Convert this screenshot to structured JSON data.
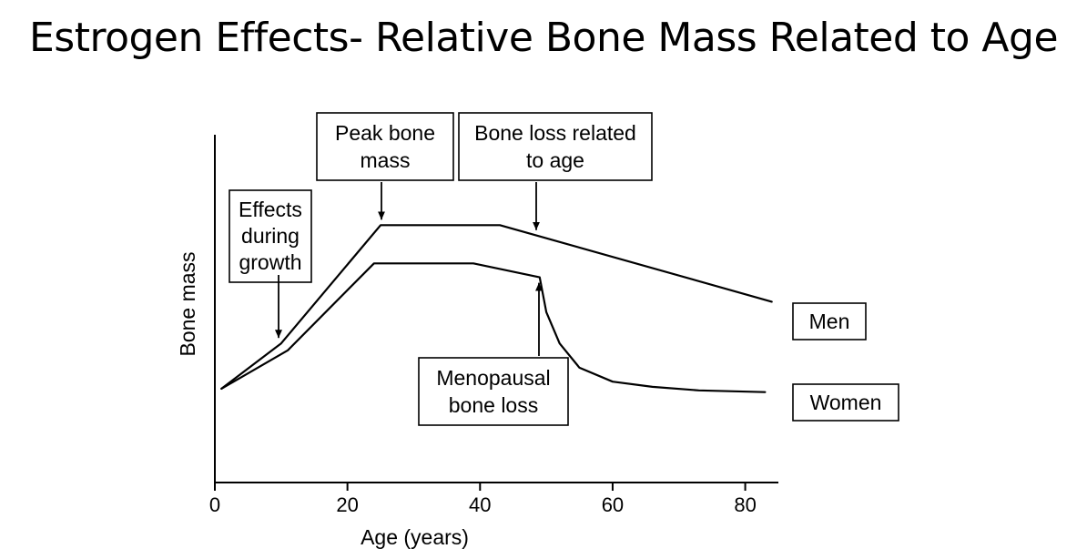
{
  "page": {
    "title": "Estrogen Effects- Relative Bone Mass Related to Age"
  },
  "chart_data": {
    "type": "line",
    "title": "Estrogen Effects- Relative Bone Mass Related to Age",
    "xlabel": "Age (years)",
    "ylabel": "Bone mass",
    "xlim": [
      0,
      85
    ],
    "ylim": [
      0,
      100
    ],
    "x_ticks": [
      0,
      20,
      40,
      60,
      80
    ],
    "x_tick_labels": [
      "0",
      "20",
      "40",
      "60",
      "80"
    ],
    "y_ticks_shown": false,
    "grid": false,
    "colors": {
      "line": "#000000",
      "background": "#ffffff"
    },
    "series": [
      {
        "name": "Men",
        "x": [
          1,
          10,
          25,
          43,
          84
        ],
        "y": [
          27,
          40,
          74,
          74,
          52
        ]
      },
      {
        "name": "Women",
        "x": [
          1,
          11,
          24,
          39,
          49,
          50,
          52,
          55,
          60,
          66,
          73,
          83
        ],
        "y": [
          27,
          38,
          63,
          63,
          59,
          49,
          40,
          33,
          29,
          27.5,
          26.5,
          26
        ]
      }
    ],
    "annotations": [
      {
        "id": "growth",
        "lines": [
          "Effects",
          "during",
          "growth"
        ],
        "arrow_to": {
          "x": 10,
          "y": 40
        }
      },
      {
        "id": "peak",
        "lines": [
          "Peak bone",
          "mass"
        ],
        "arrow_to": {
          "x": 25,
          "y": 74
        }
      },
      {
        "id": "age",
        "lines": [
          "Bone loss related",
          "to age"
        ],
        "arrow_to": {
          "x": 48,
          "y": 71
        }
      },
      {
        "id": "menopause",
        "lines": [
          "Menopausal",
          "bone loss"
        ],
        "arrow_to": {
          "x": 49,
          "y": 59
        }
      }
    ]
  }
}
